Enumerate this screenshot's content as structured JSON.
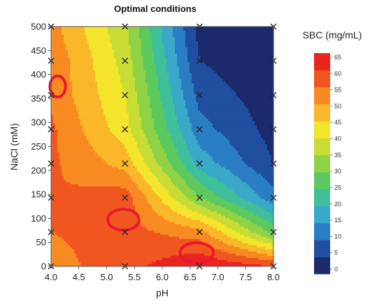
{
  "chart_data": {
    "type": "heatmap",
    "title": "Optimal conditions",
    "xlabel": "pH",
    "ylabel": "NaCl (mM)",
    "colorbar_label": "SBC (mg/mL)",
    "xlim": [
      4.0,
      8.0
    ],
    "ylim": [
      0,
      500
    ],
    "zlim": [
      0,
      65
    ],
    "x_ticks": [
      "4.0",
      "4.5",
      "5.0",
      "5.5",
      "6.0",
      "6.5",
      "7.0",
      "7.5",
      "8.0"
    ],
    "y_ticks": [
      "0",
      "50",
      "100",
      "150",
      "200",
      "250",
      "300",
      "350",
      "400",
      "450",
      "500"
    ],
    "colorbar_ticks": [
      "0",
      "5",
      "10",
      "15",
      "20",
      "25",
      "30",
      "35",
      "40",
      "45",
      "50",
      "55",
      "60",
      "65"
    ],
    "colors": [
      "#1b2a6b",
      "#1f4f9e",
      "#2a7ec3",
      "#3aa8c8",
      "#3fbf9a",
      "#5cc95e",
      "#8fd246",
      "#c7dd36",
      "#f2e52b",
      "#f9b729",
      "#f78b22",
      "#f0561f",
      "#e8251f"
    ],
    "grid_x": [
      4.0,
      5.33,
      6.67,
      8.0
    ],
    "grid_y": [
      0,
      71.4,
      142.9,
      214.3,
      285.7,
      357.1,
      428.6,
      500
    ],
    "z": [
      [
        53,
        58,
        65,
        60
      ],
      [
        55,
        57,
        52,
        28
      ],
      [
        55,
        58,
        30,
        12
      ],
      [
        56,
        48,
        18,
        5
      ],
      [
        56,
        42,
        12,
        3
      ],
      [
        54,
        40,
        8,
        2
      ],
      [
        54,
        38,
        5,
        1
      ],
      [
        52,
        36,
        3,
        1
      ]
    ],
    "highlights": [
      {
        "x": 4.12,
        "y": 375,
        "rx": 0.14,
        "ry": 22,
        "color": "#e8192c"
      },
      {
        "x": 5.3,
        "y": 97,
        "rx": 0.28,
        "ry": 22,
        "color": "#e8192c"
      },
      {
        "x": 6.62,
        "y": 28,
        "rx": 0.3,
        "ry": 21,
        "color": "#e8192c"
      }
    ]
  }
}
